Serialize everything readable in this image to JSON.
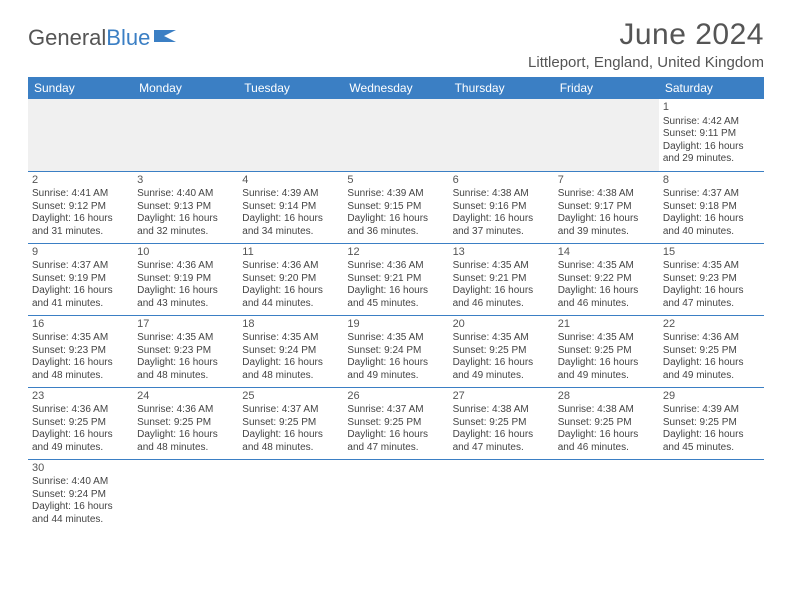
{
  "logo": {
    "text1": "General",
    "text2": "Blue"
  },
  "title": "June 2024",
  "location": "Littleport, England, United Kingdom",
  "colors": {
    "header_bg": "#3b7fc4",
    "header_text": "#ffffff",
    "border": "#3b7fc4",
    "text": "#444444",
    "title_text": "#555555",
    "blank_row_bg": "#f0f0f0"
  },
  "dayHeaders": [
    "Sunday",
    "Monday",
    "Tuesday",
    "Wednesday",
    "Thursday",
    "Friday",
    "Saturday"
  ],
  "weeks": [
    [
      null,
      null,
      null,
      null,
      null,
      null,
      {
        "n": "1",
        "sr": "4:42 AM",
        "ss": "9:11 PM",
        "dl": "16 hours and 29 minutes."
      }
    ],
    [
      {
        "n": "2",
        "sr": "4:41 AM",
        "ss": "9:12 PM",
        "dl": "16 hours and 31 minutes."
      },
      {
        "n": "3",
        "sr": "4:40 AM",
        "ss": "9:13 PM",
        "dl": "16 hours and 32 minutes."
      },
      {
        "n": "4",
        "sr": "4:39 AM",
        "ss": "9:14 PM",
        "dl": "16 hours and 34 minutes."
      },
      {
        "n": "5",
        "sr": "4:39 AM",
        "ss": "9:15 PM",
        "dl": "16 hours and 36 minutes."
      },
      {
        "n": "6",
        "sr": "4:38 AM",
        "ss": "9:16 PM",
        "dl": "16 hours and 37 minutes."
      },
      {
        "n": "7",
        "sr": "4:38 AM",
        "ss": "9:17 PM",
        "dl": "16 hours and 39 minutes."
      },
      {
        "n": "8",
        "sr": "4:37 AM",
        "ss": "9:18 PM",
        "dl": "16 hours and 40 minutes."
      }
    ],
    [
      {
        "n": "9",
        "sr": "4:37 AM",
        "ss": "9:19 PM",
        "dl": "16 hours and 41 minutes."
      },
      {
        "n": "10",
        "sr": "4:36 AM",
        "ss": "9:19 PM",
        "dl": "16 hours and 43 minutes."
      },
      {
        "n": "11",
        "sr": "4:36 AM",
        "ss": "9:20 PM",
        "dl": "16 hours and 44 minutes."
      },
      {
        "n": "12",
        "sr": "4:36 AM",
        "ss": "9:21 PM",
        "dl": "16 hours and 45 minutes."
      },
      {
        "n": "13",
        "sr": "4:35 AM",
        "ss": "9:21 PM",
        "dl": "16 hours and 46 minutes."
      },
      {
        "n": "14",
        "sr": "4:35 AM",
        "ss": "9:22 PM",
        "dl": "16 hours and 46 minutes."
      },
      {
        "n": "15",
        "sr": "4:35 AM",
        "ss": "9:23 PM",
        "dl": "16 hours and 47 minutes."
      }
    ],
    [
      {
        "n": "16",
        "sr": "4:35 AM",
        "ss": "9:23 PM",
        "dl": "16 hours and 48 minutes."
      },
      {
        "n": "17",
        "sr": "4:35 AM",
        "ss": "9:23 PM",
        "dl": "16 hours and 48 minutes."
      },
      {
        "n": "18",
        "sr": "4:35 AM",
        "ss": "9:24 PM",
        "dl": "16 hours and 48 minutes."
      },
      {
        "n": "19",
        "sr": "4:35 AM",
        "ss": "9:24 PM",
        "dl": "16 hours and 49 minutes."
      },
      {
        "n": "20",
        "sr": "4:35 AM",
        "ss": "9:25 PM",
        "dl": "16 hours and 49 minutes."
      },
      {
        "n": "21",
        "sr": "4:35 AM",
        "ss": "9:25 PM",
        "dl": "16 hours and 49 minutes."
      },
      {
        "n": "22",
        "sr": "4:36 AM",
        "ss": "9:25 PM",
        "dl": "16 hours and 49 minutes."
      }
    ],
    [
      {
        "n": "23",
        "sr": "4:36 AM",
        "ss": "9:25 PM",
        "dl": "16 hours and 49 minutes."
      },
      {
        "n": "24",
        "sr": "4:36 AM",
        "ss": "9:25 PM",
        "dl": "16 hours and 48 minutes."
      },
      {
        "n": "25",
        "sr": "4:37 AM",
        "ss": "9:25 PM",
        "dl": "16 hours and 48 minutes."
      },
      {
        "n": "26",
        "sr": "4:37 AM",
        "ss": "9:25 PM",
        "dl": "16 hours and 47 minutes."
      },
      {
        "n": "27",
        "sr": "4:38 AM",
        "ss": "9:25 PM",
        "dl": "16 hours and 47 minutes."
      },
      {
        "n": "28",
        "sr": "4:38 AM",
        "ss": "9:25 PM",
        "dl": "16 hours and 46 minutes."
      },
      {
        "n": "29",
        "sr": "4:39 AM",
        "ss": "9:25 PM",
        "dl": "16 hours and 45 minutes."
      }
    ],
    [
      {
        "n": "30",
        "sr": "4:40 AM",
        "ss": "9:24 PM",
        "dl": "16 hours and 44 minutes."
      },
      null,
      null,
      null,
      null,
      null,
      null
    ]
  ],
  "labels": {
    "sunrise": "Sunrise: ",
    "sunset": "Sunset: ",
    "daylight": "Daylight: "
  }
}
